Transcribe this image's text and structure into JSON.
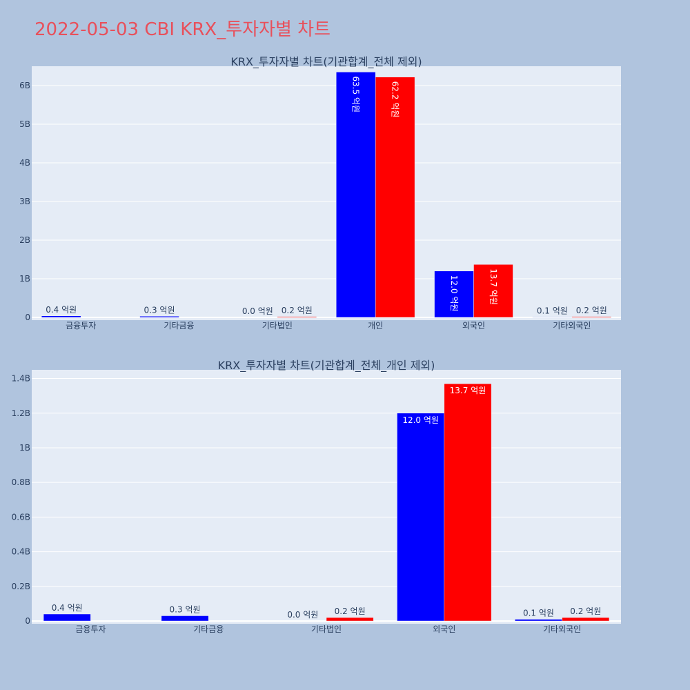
{
  "page_title": "2022-05-03 CBI KRX_투자자별 차트",
  "chart_data": [
    {
      "type": "bar",
      "title": "KRX_투자자별 차트(기관합계_전체 제외)",
      "categories": [
        "금융투자",
        "기타금융",
        "기타법인",
        "개인",
        "외국인",
        "기타외국인"
      ],
      "series": [
        {
          "color": "#0000ff",
          "values": [
            40000000,
            30000000,
            0,
            6350000000,
            1200000000,
            10000000
          ],
          "labels": [
            "0.4 억원",
            "0.3 억원",
            "0.0 억원",
            "63.5 억원",
            "12.0 억원",
            "0.1 억원"
          ]
        },
        {
          "color": "#ff0000",
          "values": [
            0,
            0,
            20000000,
            6220000000,
            1370000000,
            20000000
          ],
          "labels": [
            "",
            "",
            "0.2 억원",
            "62.2 억원",
            "13.7 억원",
            "0.2 억원"
          ]
        }
      ],
      "ylim": [
        0,
        6500000000
      ],
      "yticks": [
        0,
        1000000000,
        2000000000,
        3000000000,
        4000000000,
        5000000000,
        6000000000
      ],
      "ytick_labels": [
        "0",
        "1B",
        "2B",
        "3B",
        "4B",
        "5B",
        "6B"
      ],
      "label_style": "vertical-inside",
      "grid": true
    },
    {
      "type": "bar",
      "title": "KRX_투자자별 차트(기관합계_전체_개인 제외)",
      "categories": [
        "금융투자",
        "기타금융",
        "기타법인",
        "외국인",
        "기타외국인"
      ],
      "series": [
        {
          "color": "#0000ff",
          "values": [
            40000000,
            30000000,
            0,
            1200000000,
            10000000
          ],
          "labels": [
            "0.4 억원",
            "0.3 억원",
            "0.0 억원",
            "12.0 억원",
            "0.1 억원"
          ]
        },
        {
          "color": "#ff0000",
          "values": [
            0,
            0,
            20000000,
            1370000000,
            20000000
          ],
          "labels": [
            "",
            "",
            "0.2 억원",
            "13.7 억원",
            "0.2 억원"
          ]
        }
      ],
      "ylim": [
        0,
        1450000000
      ],
      "yticks": [
        0,
        200000000,
        400000000,
        600000000,
        800000000,
        1000000000,
        1200000000,
        1400000000
      ],
      "ytick_labels": [
        "0",
        "0.2B",
        "0.4B",
        "0.6B",
        "0.8B",
        "1B",
        "1.2B",
        "1.4B"
      ],
      "label_style": "horizontal-inside",
      "grid": true
    }
  ]
}
